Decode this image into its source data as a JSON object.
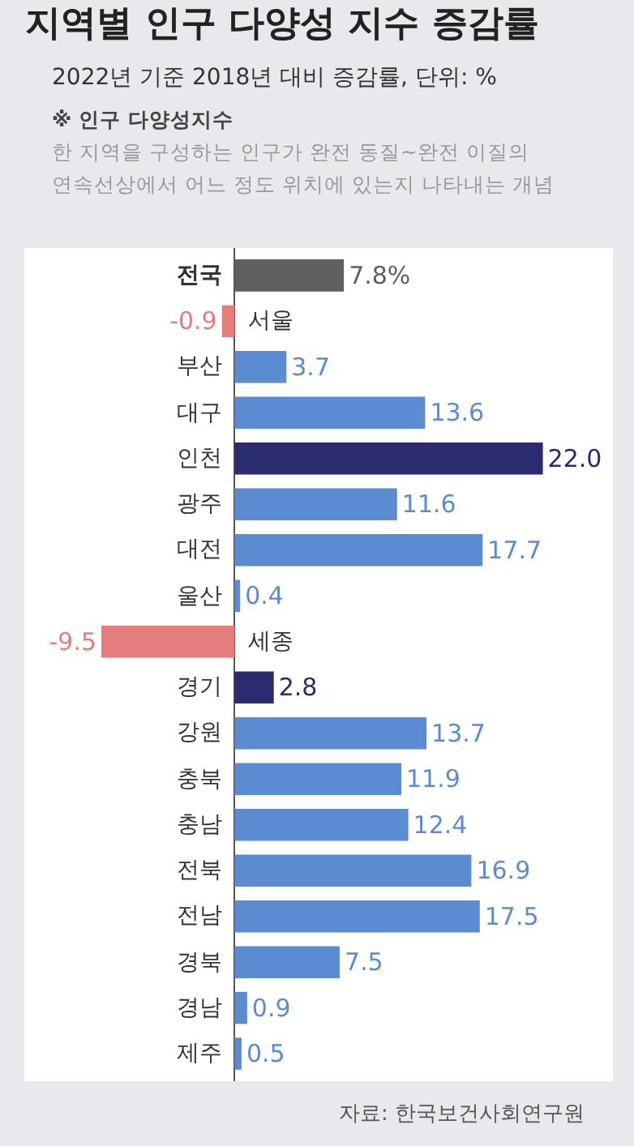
{
  "chart_data": {
    "type": "bar",
    "orientation": "horizontal",
    "title": "지역별 인구 다양성 지수 증감률",
    "subtitle": "2022년 기준 2018년 대비 증감률, 단위: %",
    "annotations": [
      "※ 인구 다양성지수",
      "한 지역을 구성하는 인구가 완전 동질~완전 이질의",
      "연속선상에서 어느 정도 위치에 있는지 나타내는 개념",
      "자료: 한국보건사회연구원"
    ],
    "categories": [
      "전국",
      "서울",
      "부산",
      "대구",
      "인천",
      "광주",
      "대전",
      "울산",
      "세종",
      "경기",
      "강원",
      "충북",
      "충남",
      "전북",
      "전남",
      "경북",
      "경남",
      "제주"
    ],
    "values": [
      7.8,
      -0.9,
      3.7,
      13.6,
      22.0,
      11.6,
      17.7,
      0.4,
      -9.5,
      2.8,
      13.7,
      11.9,
      12.4,
      16.9,
      17.5,
      7.5,
      0.9,
      0.5
    ],
    "value_labels": [
      "7.8%",
      "-0.9",
      "3.7",
      "13.6",
      "22.0",
      "11.6",
      "17.7",
      "0.4",
      "-9.5",
      "2.8",
      "13.7",
      "11.9",
      "12.4",
      "16.9",
      "17.5",
      "7.5",
      "0.9",
      "0.5"
    ],
    "colors": [
      "#5f5f5f",
      "#e57c7c",
      "#5b8bd0",
      "#5b8bd0",
      "#2a2a6e",
      "#5b8bd0",
      "#5b8bd0",
      "#5b8bd0",
      "#e57c7c",
      "#2a2a6e",
      "#5b8bd0",
      "#5b8bd0",
      "#5b8bd0",
      "#5b8bd0",
      "#5b8bd0",
      "#5b8bd0",
      "#5b8bd0",
      "#5b8bd0"
    ],
    "xlim": [
      -15,
      27
    ],
    "tick_labels": false,
    "legend": false
  }
}
